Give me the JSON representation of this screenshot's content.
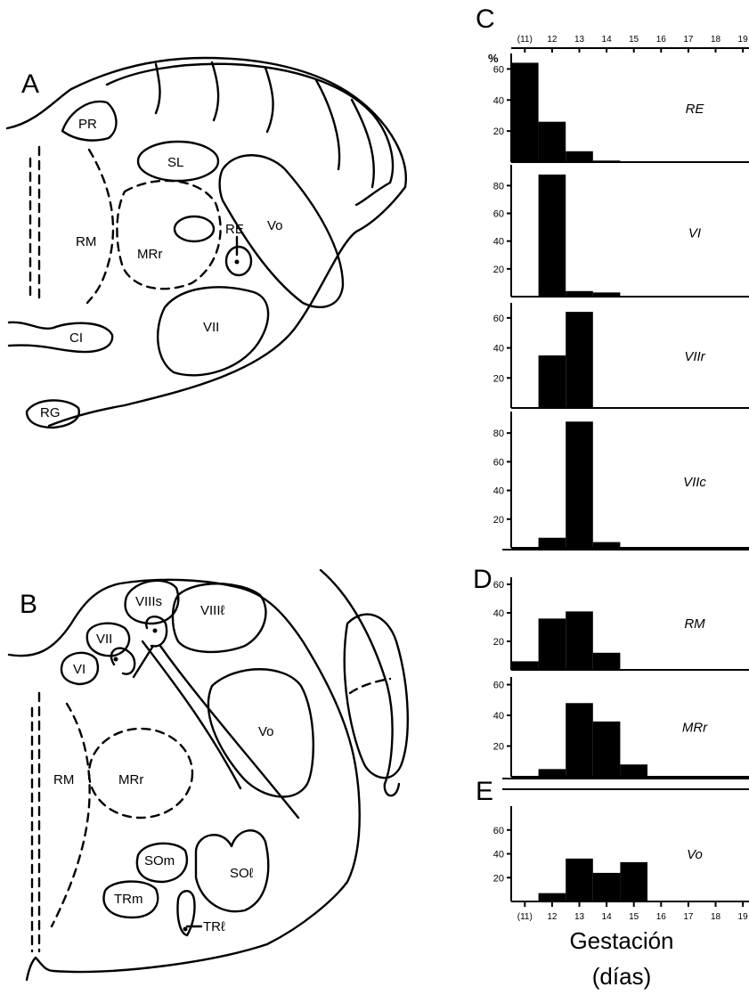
{
  "panels": {
    "a": "A",
    "b": "B",
    "c": "C",
    "d": "D",
    "e": "E"
  },
  "regions_a": {
    "pr": "PR",
    "sl": "SL",
    "rm": "RM",
    "mrr": "MRr",
    "re": "RE",
    "vo": "Vo",
    "vii": "VII",
    "ci": "CI",
    "rg": "RG"
  },
  "regions_b": {
    "viiis": "VIIIs",
    "viiil": "VIIIℓ",
    "vii": "VII",
    "vi": "VI",
    "vo": "Vo",
    "rm": "RM",
    "mrr": "MRr",
    "som": "SOm",
    "sol": "SOℓ",
    "trm": "TRm",
    "trl": "TRℓ"
  },
  "axis": {
    "percent_symbol": "%",
    "xlabel_line1": "Gestación",
    "xlabel_line2": "(días)"
  },
  "chart_data": {
    "type": "bar",
    "title": "",
    "xlabel": "Gestación (días)",
    "ylabel": "%",
    "x_tick_labels": [
      "(11)",
      "12",
      "13",
      "14",
      "15",
      "16",
      "17",
      "18",
      "19"
    ],
    "xlim": [
      11,
      19
    ],
    "grid": false,
    "panels": [
      {
        "group": "C",
        "name": "RE",
        "ymax": 70,
        "yticks": [
          "20",
          "40",
          "60"
        ],
        "values": [
          64,
          26,
          7,
          1,
          0,
          0,
          0,
          0,
          0
        ]
      },
      {
        "group": "C",
        "name": "VI",
        "ymax": 95,
        "yticks": [
          "20",
          "40",
          "60",
          "80"
        ],
        "values": [
          0,
          88,
          4,
          3,
          0,
          0,
          0,
          0,
          0
        ]
      },
      {
        "group": "C",
        "name": "VIIr",
        "ymax": 70,
        "yticks": [
          "20",
          "40",
          "60"
        ],
        "values": [
          0,
          35,
          64,
          0,
          0,
          0,
          0,
          0,
          0
        ]
      },
      {
        "group": "C",
        "name": "VIIc",
        "ymax": 95,
        "yticks": [
          "20",
          "40",
          "60",
          "80"
        ],
        "values": [
          0,
          7,
          88,
          4,
          0,
          0,
          0,
          0,
          0
        ]
      },
      {
        "group": "D",
        "name": "RM",
        "ymax": 65,
        "yticks": [
          "20",
          "40",
          "60"
        ],
        "values": [
          6,
          36,
          41,
          12,
          0,
          0,
          0,
          0,
          0
        ]
      },
      {
        "group": "D",
        "name": "MRr",
        "ymax": 65,
        "yticks": [
          "20",
          "40",
          "60"
        ],
        "values": [
          0,
          5,
          48,
          36,
          8,
          0,
          0,
          0,
          0
        ]
      },
      {
        "group": "E",
        "name": "Vo",
        "ymax": 80,
        "yticks": [
          "20",
          "40",
          "60"
        ],
        "values": [
          0,
          7,
          36,
          24,
          33,
          0,
          0,
          0,
          0
        ]
      }
    ]
  }
}
